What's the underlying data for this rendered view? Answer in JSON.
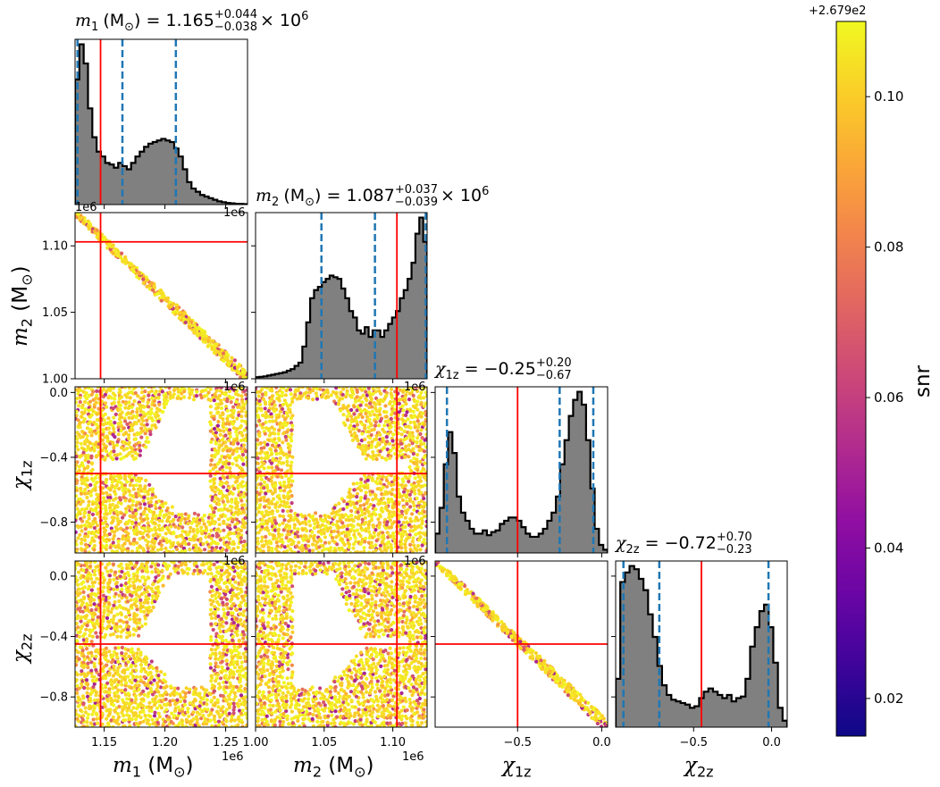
{
  "chart_data": {
    "type": "corner",
    "parameters": [
      "m1",
      "m2",
      "chi1z",
      "chi2z"
    ],
    "titles": {
      "m1": {
        "name": "m",
        "sub": "1",
        "unit": "(M",
        "unit_sub": "⊙",
        "unit_close": ")",
        "eq": " = 1.165",
        "plus": "+0.044",
        "minus": "−0.038",
        "tail": "× 10",
        "tail_sup": "6"
      },
      "m2": {
        "name": "m",
        "sub": "2",
        "unit": "(M",
        "unit_sub": "⊙",
        "unit_close": ")",
        "eq": " = 1.087",
        "plus": "+0.037",
        "minus": "−0.039",
        "tail": "× 10",
        "tail_sup": "6"
      },
      "chi1z": {
        "name": "χ",
        "sub": "1z",
        "eq": " = −0.25",
        "plus": "+0.20",
        "minus": "−0.67"
      },
      "chi2z": {
        "name": "χ",
        "sub": "2z",
        "eq": " = −0.72",
        "plus": "+0.70",
        "minus": "−0.23"
      }
    },
    "axis_labels": {
      "m1": {
        "name": "m",
        "sub": "1",
        "unit": " (M",
        "unit_sub": "⊙",
        "unit_close": ")"
      },
      "m2": {
        "name": "m",
        "sub": "2",
        "unit": " (M",
        "unit_sub": "⊙",
        "unit_close": ")"
      },
      "chi1z": {
        "name": "χ",
        "sub": "1z"
      },
      "chi2z": {
        "name": "χ",
        "sub": "2z"
      }
    },
    "offset_text": "1e6",
    "ranges": {
      "m1": [
        1.126,
        1.268
      ],
      "m2": [
        1.0,
        1.125
      ],
      "chi1z": [
        -0.99,
        0.035
      ],
      "chi2z": [
        -1.0,
        0.1
      ]
    },
    "ticks": {
      "m1": {
        "values": [
          1.15,
          1.2,
          1.25
        ],
        "labels": [
          "1.15",
          "1.20",
          "1.25"
        ]
      },
      "m2": {
        "values": [
          1.0,
          1.05,
          1.1
        ],
        "labels": [
          "1.00",
          "1.05",
          "1.10"
        ]
      },
      "chi1z_x": {
        "values": [
          -0.5,
          0.0
        ],
        "labels": [
          "−0.5",
          "0.0"
        ]
      },
      "chi1z_y": {
        "values": [
          0.0,
          -0.4,
          -0.8
        ],
        "labels": [
          "0.0",
          "−0.4",
          "−0.8"
        ]
      },
      "chi2z_x": {
        "values": [
          -0.5,
          0.0
        ],
        "labels": [
          "−0.5",
          "0.0"
        ]
      },
      "chi2z_y": {
        "values": [
          0.0,
          -0.4,
          -0.8
        ],
        "labels": [
          "0.0",
          "−0.4",
          "−0.8"
        ]
      }
    },
    "truth": {
      "m1": 1.147,
      "m2": 1.103,
      "chi1z": -0.5,
      "chi2z": -0.45
    },
    "quantiles": {
      "m1": [
        1.128,
        1.165,
        1.209
      ],
      "m2": [
        1.048,
        1.087,
        1.124
      ],
      "chi1z": [
        -0.92,
        -0.25,
        -0.05
      ],
      "chi2z": [
        -0.95,
        -0.72,
        -0.02
      ]
    },
    "histograms": {
      "m1": [
        0.78,
        1.0,
        0.88,
        0.6,
        0.42,
        0.33,
        0.3,
        0.26,
        0.25,
        0.23,
        0.26,
        0.24,
        0.22,
        0.26,
        0.3,
        0.33,
        0.36,
        0.38,
        0.39,
        0.4,
        0.41,
        0.4,
        0.39,
        0.35,
        0.3,
        0.22,
        0.14,
        0.1,
        0.08,
        0.06,
        0.05,
        0.04,
        0.03,
        0.02,
        0.015,
        0.01,
        0.008,
        0.005,
        0.004,
        0.003
      ],
      "m2": [
        0.01,
        0.012,
        0.015,
        0.02,
        0.025,
        0.03,
        0.035,
        0.04,
        0.05,
        0.06,
        0.08,
        0.1,
        0.2,
        0.35,
        0.5,
        0.55,
        0.57,
        0.6,
        0.62,
        0.64,
        0.63,
        0.62,
        0.56,
        0.5,
        0.42,
        0.38,
        0.3,
        0.28,
        0.32,
        0.26,
        0.3,
        0.3,
        0.26,
        0.3,
        0.34,
        0.38,
        0.42,
        0.5,
        0.55,
        0.62,
        0.72,
        0.9,
        1.0,
        0.85
      ],
      "chi1z": [
        0.12,
        0.28,
        0.55,
        0.75,
        0.62,
        0.35,
        0.25,
        0.2,
        0.15,
        0.12,
        0.12,
        0.14,
        0.11,
        0.13,
        0.14,
        0.18,
        0.2,
        0.22,
        0.22,
        0.2,
        0.16,
        0.12,
        0.1,
        0.1,
        0.12,
        0.15,
        0.2,
        0.25,
        0.35,
        0.55,
        0.7,
        0.85,
        0.95,
        1.0,
        0.92,
        0.7,
        0.4,
        0.15,
        0.05,
        0.02
      ],
      "chi2z": [
        0.3,
        0.9,
        0.96,
        1.0,
        0.98,
        0.92,
        0.85,
        0.7,
        0.56,
        0.38,
        0.26,
        0.2,
        0.17,
        0.16,
        0.15,
        0.14,
        0.12,
        0.13,
        0.18,
        0.22,
        0.24,
        0.22,
        0.2,
        0.18,
        0.2,
        0.16,
        0.18,
        0.19,
        0.3,
        0.5,
        0.62,
        0.72,
        0.76,
        0.62,
        0.4,
        0.12,
        0.04
      ]
    },
    "colorbar": {
      "label": "snr",
      "offset_text": "+2.679e2",
      "range": [
        0.015,
        0.11
      ],
      "ticks": [
        0.02,
        0.04,
        0.06,
        0.08,
        0.1
      ],
      "tick_labels": [
        "0.02",
        "0.04",
        "0.06",
        "0.08",
        "0.10"
      ],
      "colormap": "plasma"
    },
    "colors": {
      "hist_fill": "#808080",
      "hist_edge": "#000000",
      "truth": "#ff0000",
      "quantile": "#1f77b4"
    },
    "grid": false
  }
}
